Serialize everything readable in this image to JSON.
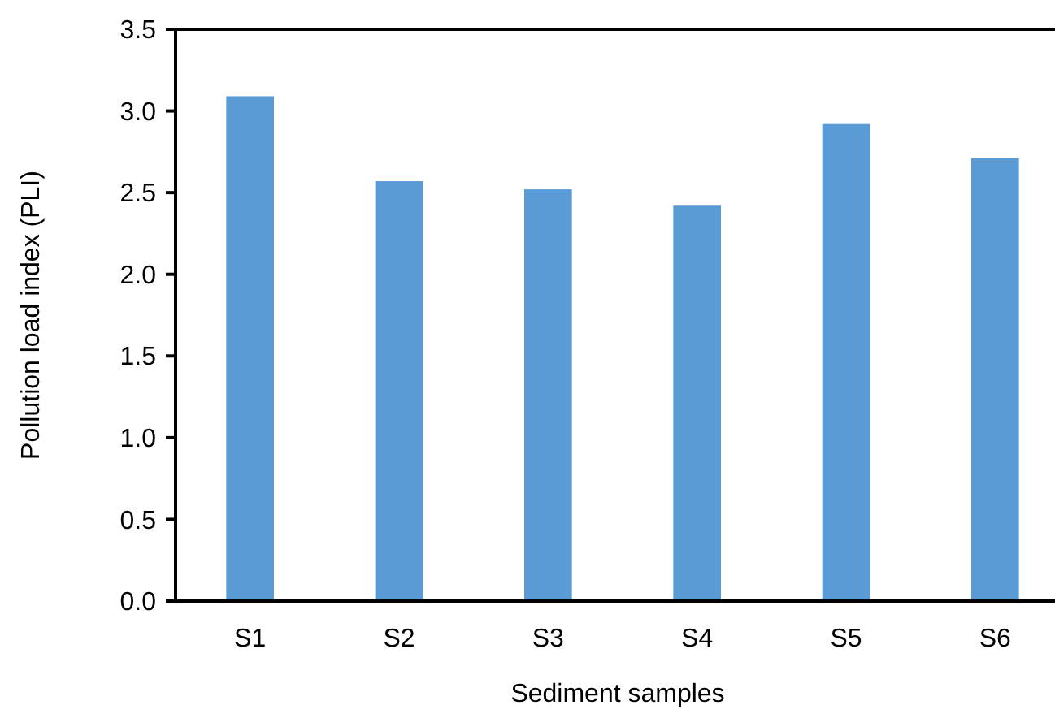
{
  "chart_data": {
    "type": "bar",
    "xlabel": "Sediment samples",
    "ylabel": "Pollution load index (PLI)",
    "categories": [
      "S1",
      "S2",
      "S3",
      "S4",
      "S5",
      "S6"
    ],
    "values": [
      3.09,
      2.57,
      2.52,
      2.42,
      2.92,
      2.71
    ],
    "color": "#5b9bd5",
    "ylim": [
      0,
      3.5
    ],
    "yticks": [
      {
        "value": 0,
        "label": "0.0"
      },
      {
        "value": 0.5,
        "label": "0.5"
      },
      {
        "value": 1,
        "label": "1.0"
      },
      {
        "value": 1.5,
        "label": "1.5"
      },
      {
        "value": 2,
        "label": "2.0"
      },
      {
        "value": 2.5,
        "label": "2.5"
      },
      {
        "value": 3,
        "label": "3.0"
      },
      {
        "value": 3.5,
        "label": "3.5"
      }
    ],
    "grid": false
  }
}
